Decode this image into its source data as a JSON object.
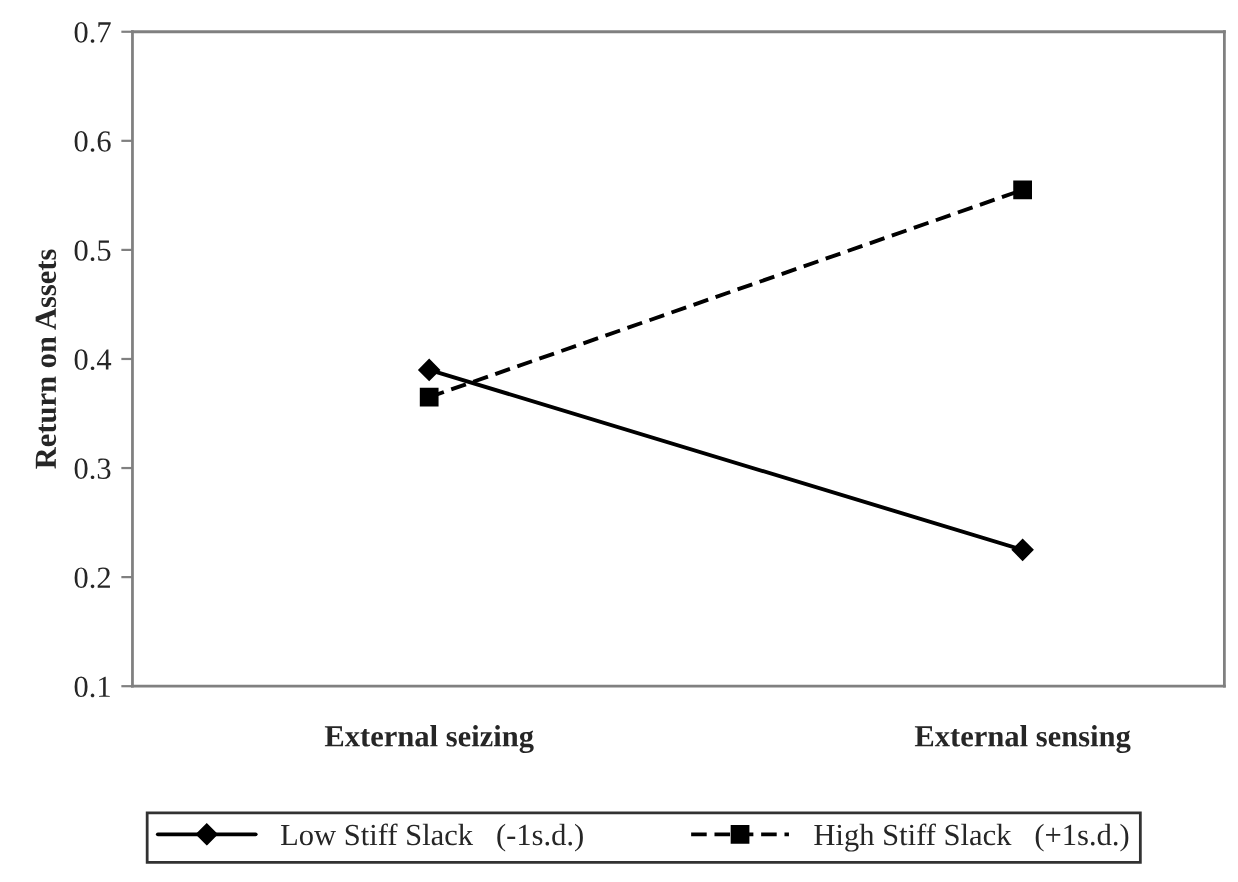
{
  "chart_data": {
    "type": "line",
    "ylabel": "Return on Assets",
    "categories": [
      "External seizing",
      "External sensing"
    ],
    "series": [
      {
        "name": "Low Stiff Slack   (-1s.d.)",
        "color": "#000000",
        "values": [
          0.39,
          0.225
        ],
        "marker": "diamond",
        "line_style": "solid"
      },
      {
        "name": "High Stiff Slack   (+1s.d.)",
        "color": "#000000",
        "values": [
          0.365,
          0.555
        ],
        "marker": "square",
        "line_style": "dashed"
      }
    ],
    "ylim": [
      0.1,
      0.7
    ],
    "yticks": [
      0.1,
      0.2,
      0.3,
      0.4,
      0.5,
      0.6,
      0.7
    ],
    "grid": false,
    "legend": "bottom"
  }
}
